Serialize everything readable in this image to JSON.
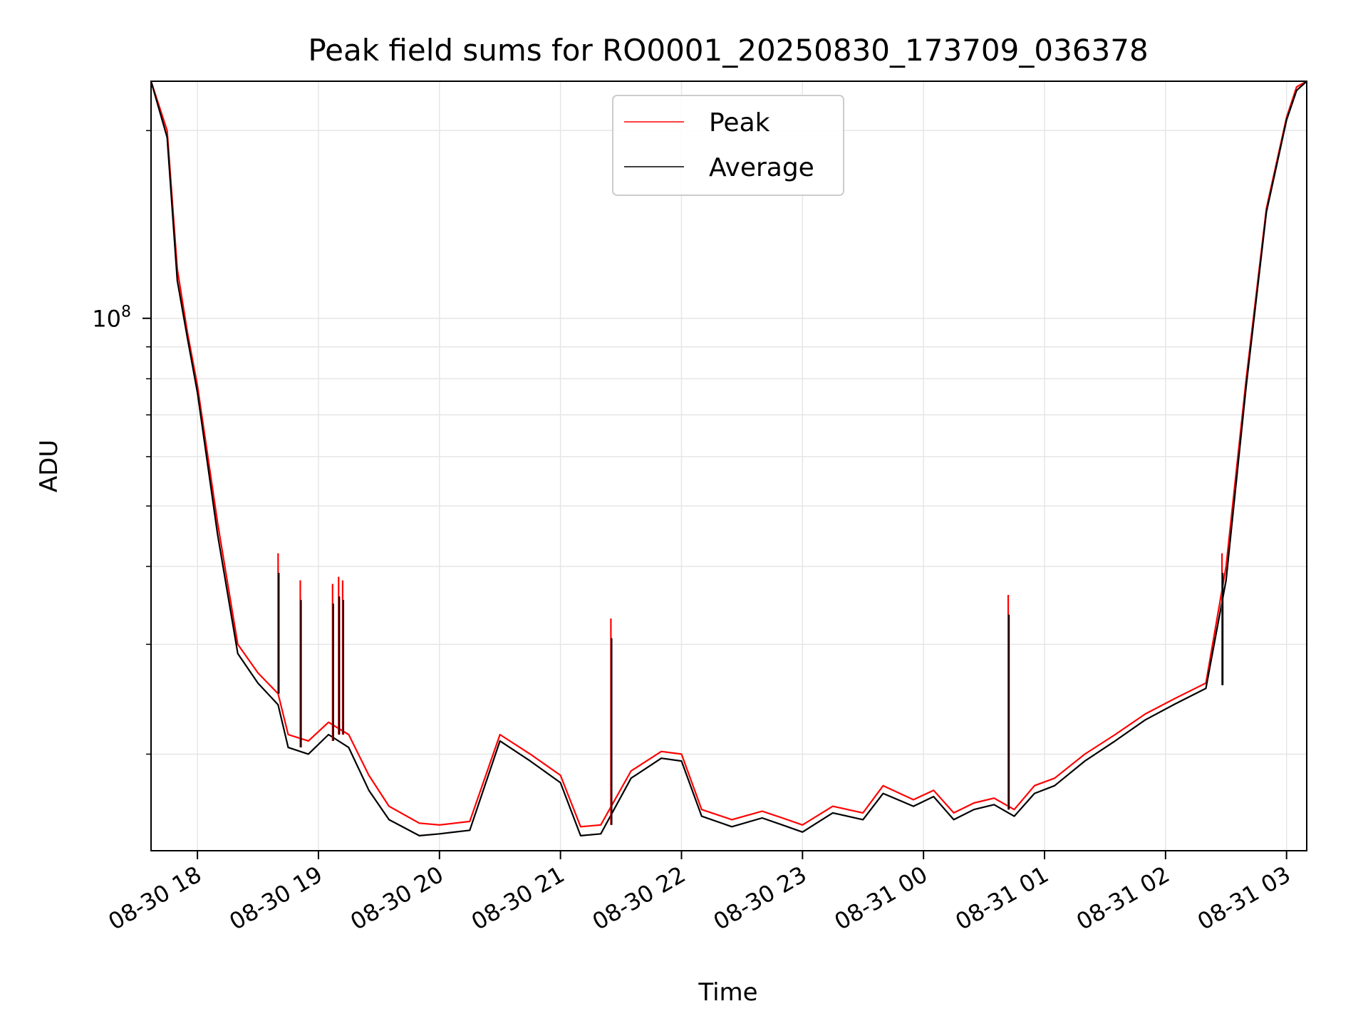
{
  "chart_data": {
    "type": "line",
    "title": "Peak field sums for RO0001_20250830_173709_036378",
    "xlabel": "Time",
    "ylabel": "ADU",
    "y_scale": "log",
    "ylim": [
      14000000,
      240000000
    ],
    "xlim": [
      "2025-08-30 17:37",
      "2025-08-31 03:10"
    ],
    "grid": true,
    "legend_position": "upper-center",
    "x_ticks": [
      "08-30 18",
      "08-30 19",
      "08-30 20",
      "08-30 21",
      "08-30 22",
      "08-30 23",
      "08-31 00",
      "08-31 01",
      "08-31 02",
      "08-31 03"
    ],
    "y_ticks": [
      {
        "value": 100000000,
        "base": "10",
        "exp": "8"
      }
    ],
    "series": [
      {
        "name": "Peak",
        "color": "#ff0000",
        "x": [
          "2025-08-30 17:37",
          "2025-08-30 17:45",
          "2025-08-30 17:50",
          "2025-08-30 17:55",
          "2025-08-30 18:00",
          "2025-08-30 18:10",
          "2025-08-30 18:20",
          "2025-08-30 18:30",
          "2025-08-30 18:40",
          "2025-08-30 18:45",
          "2025-08-30 18:55",
          "2025-08-30 19:05",
          "2025-08-30 19:15",
          "2025-08-30 19:25",
          "2025-08-30 19:35",
          "2025-08-30 19:50",
          "2025-08-30 20:00",
          "2025-08-30 20:15",
          "2025-08-30 20:30",
          "2025-08-30 20:45",
          "2025-08-30 21:00",
          "2025-08-30 21:10",
          "2025-08-30 21:20",
          "2025-08-30 21:35",
          "2025-08-30 21:50",
          "2025-08-30 22:00",
          "2025-08-30 22:10",
          "2025-08-30 22:25",
          "2025-08-30 22:40",
          "2025-08-30 22:50",
          "2025-08-30 23:00",
          "2025-08-30 23:15",
          "2025-08-30 23:30",
          "2025-08-30 23:40",
          "2025-08-30 23:55",
          "2025-08-31 00:05",
          "2025-08-31 00:15",
          "2025-08-31 00:25",
          "2025-08-31 00:35",
          "2025-08-31 00:45",
          "2025-08-31 00:55",
          "2025-08-31 01:05",
          "2025-08-31 01:20",
          "2025-08-31 01:35",
          "2025-08-31 01:50",
          "2025-08-31 02:05",
          "2025-08-31 02:20",
          "2025-08-31 02:30",
          "2025-08-31 02:40",
          "2025-08-31 02:50",
          "2025-08-31 03:00",
          "2025-08-31 03:05",
          "2025-08-31 03:10"
        ],
        "y": [
          240000000,
          200000000,
          120000000,
          95000000,
          78000000,
          47000000,
          30000000,
          27000000,
          25000000,
          21500000,
          21000000,
          22500000,
          21500000,
          18500000,
          16500000,
          15500000,
          15400000,
          15600000,
          21500000,
          20000000,
          18500000,
          15300000,
          15400000,
          18800000,
          20200000,
          20000000,
          16300000,
          15700000,
          16200000,
          15800000,
          15400000,
          16500000,
          16100000,
          17800000,
          16900000,
          17500000,
          16100000,
          16700000,
          17000000,
          16300000,
          17800000,
          18300000,
          20000000,
          21500000,
          23200000,
          24600000,
          26000000,
          40000000,
          80000000,
          150000000,
          210000000,
          235000000,
          240000000
        ]
      },
      {
        "name": "Average",
        "color": "#000000",
        "x": [
          "2025-08-30 17:37",
          "2025-08-30 17:45",
          "2025-08-30 17:50",
          "2025-08-30 17:55",
          "2025-08-30 18:00",
          "2025-08-30 18:10",
          "2025-08-30 18:20",
          "2025-08-30 18:30",
          "2025-08-30 18:40",
          "2025-08-30 18:45",
          "2025-08-30 18:55",
          "2025-08-30 19:05",
          "2025-08-30 19:15",
          "2025-08-30 19:25",
          "2025-08-30 19:35",
          "2025-08-30 19:50",
          "2025-08-30 20:00",
          "2025-08-30 20:15",
          "2025-08-30 20:30",
          "2025-08-30 20:45",
          "2025-08-30 21:00",
          "2025-08-30 21:10",
          "2025-08-30 21:20",
          "2025-08-30 21:35",
          "2025-08-30 21:50",
          "2025-08-30 22:00",
          "2025-08-30 22:10",
          "2025-08-30 22:25",
          "2025-08-30 22:40",
          "2025-08-30 22:50",
          "2025-08-30 23:00",
          "2025-08-30 23:15",
          "2025-08-30 23:30",
          "2025-08-30 23:40",
          "2025-08-30 23:55",
          "2025-08-31 00:05",
          "2025-08-31 00:15",
          "2025-08-31 00:25",
          "2025-08-31 00:35",
          "2025-08-31 00:45",
          "2025-08-31 00:55",
          "2025-08-31 01:05",
          "2025-08-31 01:20",
          "2025-08-31 01:35",
          "2025-08-31 01:50",
          "2025-08-31 02:05",
          "2025-08-31 02:20",
          "2025-08-31 02:30",
          "2025-08-31 02:40",
          "2025-08-31 02:50",
          "2025-08-31 03:00",
          "2025-08-31 03:05",
          "2025-08-31 03:10"
        ],
        "y": [
          240000000,
          195000000,
          115000000,
          93000000,
          76000000,
          45000000,
          29000000,
          26000000,
          24000000,
          20500000,
          20000000,
          21500000,
          20500000,
          17500000,
          15700000,
          14800000,
          14900000,
          15100000,
          21000000,
          19500000,
          18000000,
          14800000,
          14900000,
          18300000,
          19700000,
          19500000,
          15900000,
          15300000,
          15800000,
          15400000,
          15000000,
          16100000,
          15700000,
          17300000,
          16500000,
          17100000,
          15700000,
          16300000,
          16600000,
          15900000,
          17300000,
          17800000,
          19500000,
          21000000,
          22700000,
          24100000,
          25500000,
          38000000,
          78000000,
          148000000,
          208000000,
          232000000,
          240000000
        ]
      }
    ],
    "spikes": [
      {
        "x": "2025-08-30 18:40",
        "base": 25000000,
        "top": 42000000
      },
      {
        "x": "2025-08-30 18:51",
        "base": 20500000,
        "top": 38000000
      },
      {
        "x": "2025-08-30 19:07",
        "base": 21000000,
        "top": 37500000
      },
      {
        "x": "2025-08-30 19:10",
        "base": 21500000,
        "top": 38500000
      },
      {
        "x": "2025-08-30 19:12",
        "base": 21500000,
        "top": 38000000
      },
      {
        "x": "2025-08-30 21:25",
        "base": 15400000,
        "top": 33000000
      },
      {
        "x": "2025-08-31 00:42",
        "base": 16300000,
        "top": 36000000
      },
      {
        "x": "2025-08-31 02:28",
        "base": 25800000,
        "top": 42000000
      }
    ]
  }
}
